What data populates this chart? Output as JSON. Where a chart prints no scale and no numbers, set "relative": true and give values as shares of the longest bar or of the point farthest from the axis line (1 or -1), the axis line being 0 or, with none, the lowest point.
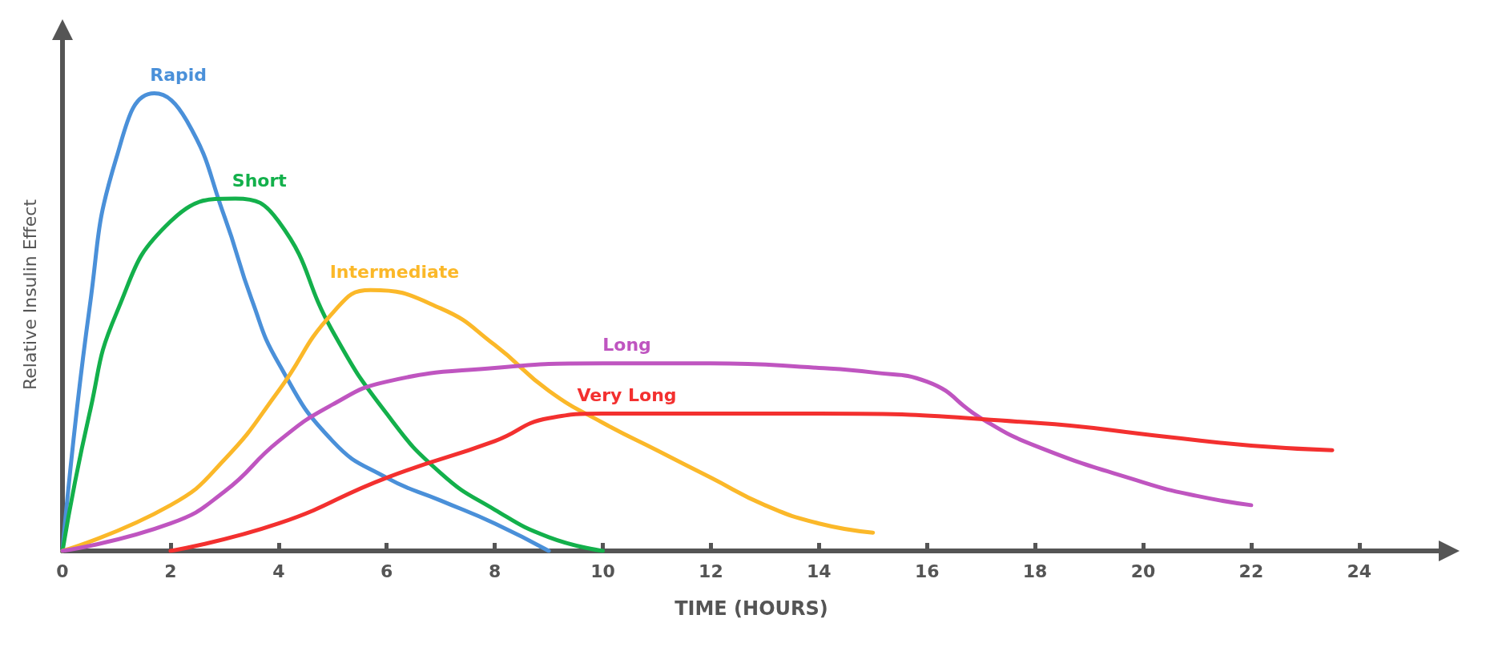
{
  "chart_data": {
    "type": "line",
    "xlabel": "TIME (HOURS)",
    "ylabel": "Relative Insulin Effect",
    "relative": true,
    "xlim": [
      0,
      25.5
    ],
    "xticks": [
      0,
      2,
      4,
      6,
      8,
      10,
      12,
      14,
      16,
      18,
      20,
      22,
      24
    ],
    "grid": false,
    "legend": false,
    "marker": "none",
    "line_style": "solid",
    "series": [
      {
        "name": "Rapid",
        "color": "#4a90d9",
        "x": [
          0,
          0.5,
          1,
          1.7,
          2.3,
          3,
          3.5,
          4,
          5,
          6,
          7,
          8,
          9
        ],
        "values": [
          0,
          0.53,
          0.86,
          1,
          0.94,
          0.73,
          0.55,
          0.41,
          0.24,
          0.16,
          0.11,
          0.06,
          0
        ]
      },
      {
        "name": "Short",
        "color": "#13b04b",
        "x": [
          0,
          0.5,
          1,
          2,
          3.2,
          4,
          5,
          6,
          7,
          8,
          9,
          10
        ],
        "values": [
          0,
          0.3,
          0.52,
          0.72,
          0.77,
          0.72,
          0.48,
          0.3,
          0.17,
          0.09,
          0.03,
          0
        ]
      },
      {
        "name": "Intermediate",
        "color": "#fbb829",
        "x": [
          0,
          2,
          3,
          4,
          5,
          5.7,
          7,
          8,
          9,
          10,
          11,
          12,
          13,
          14,
          15
        ],
        "values": [
          0,
          0.1,
          0.2,
          0.35,
          0.52,
          0.57,
          0.53,
          0.45,
          0.35,
          0.28,
          0.22,
          0.16,
          0.1,
          0.06,
          0.04
        ]
      },
      {
        "name": "Long",
        "color": "#bf55c0",
        "x": [
          0,
          2,
          3,
          4,
          5,
          6,
          8,
          10,
          12,
          14,
          15,
          16,
          17,
          18,
          20,
          21,
          22
        ],
        "values": [
          0,
          0.06,
          0.13,
          0.24,
          0.32,
          0.37,
          0.4,
          0.41,
          0.41,
          0.4,
          0.39,
          0.37,
          0.29,
          0.23,
          0.15,
          0.12,
          0.1
        ]
      },
      {
        "name": "Very Long",
        "color": "#f3302f",
        "x": [
          2,
          4,
          6,
          8,
          9,
          10,
          14,
          18,
          20.4,
          22,
          23.5
        ],
        "values": [
          0,
          0.06,
          0.16,
          0.24,
          0.29,
          0.3,
          0.3,
          0.28,
          0.25,
          0.23,
          0.22
        ]
      }
    ]
  }
}
